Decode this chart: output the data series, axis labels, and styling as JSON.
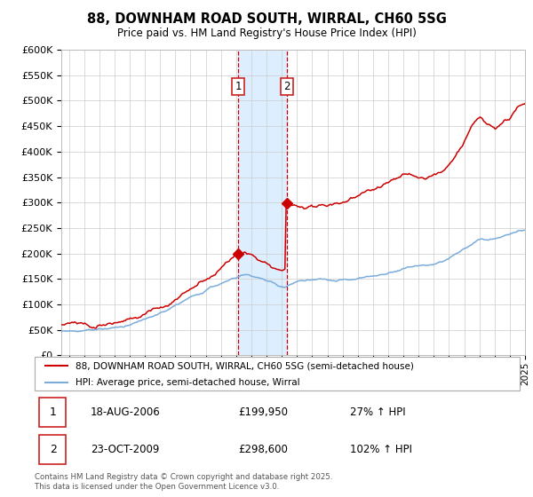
{
  "title": "88, DOWNHAM ROAD SOUTH, WIRRAL, CH60 5SG",
  "subtitle": "Price paid vs. HM Land Registry's House Price Index (HPI)",
  "legend_line1": "88, DOWNHAM ROAD SOUTH, WIRRAL, CH60 5SG (semi-detached house)",
  "legend_line2": "HPI: Average price, semi-detached house, Wirral",
  "sale1_date": "18-AUG-2006",
  "sale1_price": 199950,
  "sale1_label": "27% ↑ HPI",
  "sale2_date": "23-OCT-2009",
  "sale2_price": 298600,
  "sale2_label": "102% ↑ HPI",
  "footnote": "Contains HM Land Registry data © Crown copyright and database right 2025.\nThis data is licensed under the Open Government Licence v3.0.",
  "red_color": "#cc0000",
  "blue_color": "#7aacdc",
  "bg_color": "#ffffff",
  "grid_color": "#cccccc",
  "shade_color": "#ddeeff",
  "ylim_max": 600000,
  "ylim_min": 0,
  "sale1_x": 2006.625,
  "sale2_x": 2009.833
}
